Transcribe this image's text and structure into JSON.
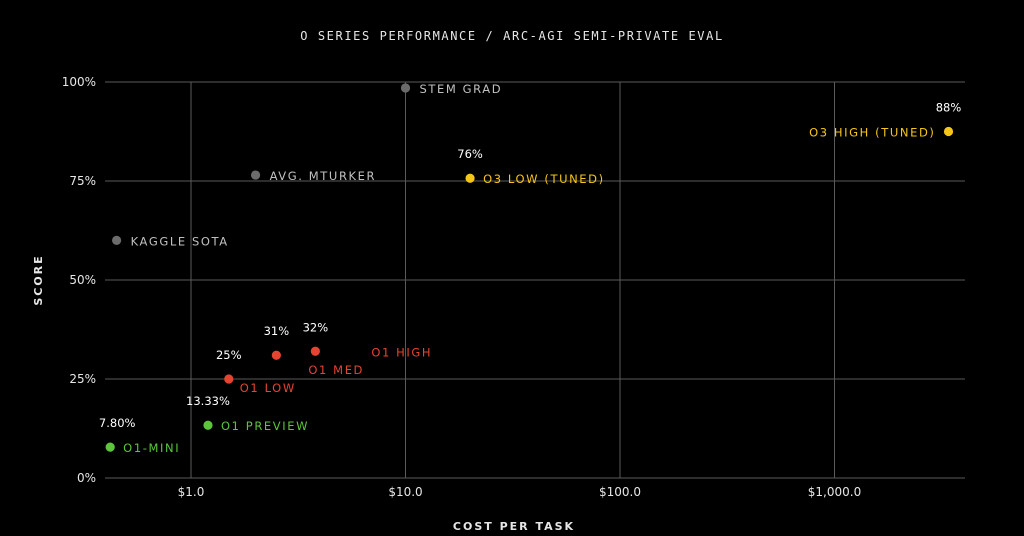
{
  "chart_data": {
    "type": "scatter",
    "title": "O SERIES PERFORMANCE / ARC-AGI SEMI-PRIVATE EVAL",
    "xlabel": "COST PER TASK",
    "ylabel": "SCORE",
    "x_scale": "log",
    "xlim": [
      0.4,
      5000
    ],
    "ylim": [
      0,
      100
    ],
    "grid": true,
    "x_ticks": [
      {
        "value": 1,
        "label": "$1.0"
      },
      {
        "value": 10,
        "label": "$10.0"
      },
      {
        "value": 100,
        "label": "$100.0"
      },
      {
        "value": 1000,
        "label": "$1,000.0"
      }
    ],
    "y_ticks": [
      {
        "value": 0,
        "label": "0%"
      },
      {
        "value": 25,
        "label": "25%"
      },
      {
        "value": 50,
        "label": "50%"
      },
      {
        "value": 75,
        "label": "75%"
      },
      {
        "value": 100,
        "label": "100%"
      }
    ],
    "colors": {
      "o1_mini_preview": "#5cc53c",
      "o1": "#e64430",
      "o3": "#f5c518",
      "baseline": "#6b6b6b",
      "baseline_text": "#c0c0c0"
    },
    "points": [
      {
        "name": "STEM GRAD",
        "x": 10,
        "y": 98.5,
        "value_label": "",
        "color_key": "baseline",
        "text_color_key": "baseline_text"
      },
      {
        "name": "AVG. MTURKER",
        "x": 2,
        "y": 76.5,
        "value_label": "",
        "color_key": "baseline",
        "text_color_key": "baseline_text"
      },
      {
        "name": "KAGGLE SOTA",
        "x": 0.45,
        "y": 60,
        "value_label": "",
        "color_key": "baseline",
        "text_color_key": "baseline_text"
      },
      {
        "name": "O3 LOW (TUNED)",
        "x": 20,
        "y": 75.7,
        "value_label": "76%",
        "color_key": "o3",
        "text_color_key": "o3"
      },
      {
        "name": "O3 HIGH (TUNED)",
        "x": 3400,
        "y": 87.5,
        "value_label": "88%",
        "color_key": "o3",
        "text_color_key": "o3"
      },
      {
        "name": "O1 HIGH",
        "x": 3.8,
        "y": 32,
        "value_label": "32%",
        "color_key": "o1",
        "text_color_key": "o1"
      },
      {
        "name": "O1 MED",
        "x": 2.5,
        "y": 31,
        "value_label": "31%",
        "color_key": "o1",
        "text_color_key": "o1"
      },
      {
        "name": "O1 LOW",
        "x": 1.5,
        "y": 25,
        "value_label": "25%",
        "color_key": "o1",
        "text_color_key": "o1"
      },
      {
        "name": "O1 PREVIEW",
        "x": 1.2,
        "y": 13.33,
        "value_label": "13.33%",
        "color_key": "o1_mini_preview",
        "text_color_key": "o1_mini_preview"
      },
      {
        "name": "O1-MINI",
        "x": 0.42,
        "y": 7.8,
        "value_label": "7.80%",
        "color_key": "o1_mini_preview",
        "text_color_key": "o1_mini_preview"
      }
    ]
  }
}
